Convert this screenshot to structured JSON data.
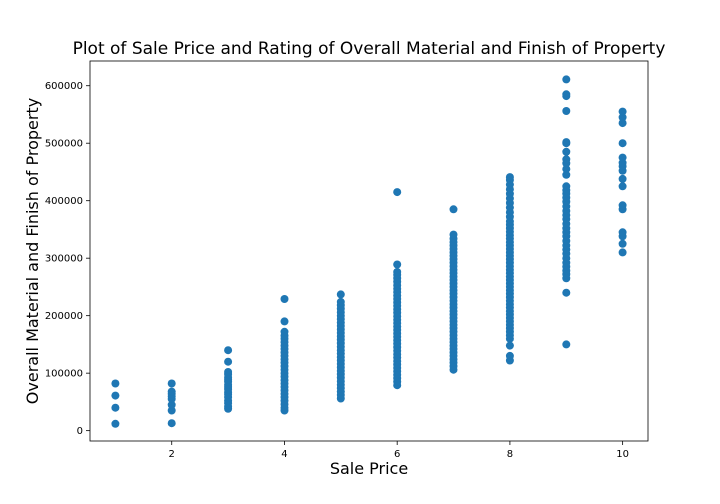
{
  "chart_data": {
    "type": "scatter",
    "title": "Plot of Sale Price and Rating of Overall Material and Finish of Property",
    "xlabel": "Sale Price",
    "ylabel": "Overall Material and Finish of Property",
    "xlim": [
      0.55,
      10.45
    ],
    "ylim": [
      -18000,
      643000
    ],
    "xticks": [
      2,
      4,
      6,
      8,
      10
    ],
    "yticks": [
      0,
      100000,
      200000,
      300000,
      400000,
      500000,
      600000
    ],
    "grid": false,
    "legend": "none",
    "marker_color": "#1f77b4",
    "points": [
      {
        "x": 1,
        "y": 12000
      },
      {
        "x": 1,
        "y": 40000
      },
      {
        "x": 1,
        "y": 61000
      },
      {
        "x": 1,
        "y": 82000
      },
      {
        "x": 2,
        "y": 13000
      },
      {
        "x": 2,
        "y": 35000
      },
      {
        "x": 2,
        "y": 45000
      },
      {
        "x": 2,
        "y": 55000
      },
      {
        "x": 2,
        "y": 60000
      },
      {
        "x": 2,
        "y": 64000
      },
      {
        "x": 2,
        "y": 68000
      },
      {
        "x": 2,
        "y": 82000
      },
      {
        "x": 3,
        "y": 38000
      },
      {
        "x": 3,
        "y": 42000
      },
      {
        "x": 3,
        "y": 48000
      },
      {
        "x": 3,
        "y": 52000
      },
      {
        "x": 3,
        "y": 58000
      },
      {
        "x": 3,
        "y": 63000
      },
      {
        "x": 3,
        "y": 67000
      },
      {
        "x": 3,
        "y": 72000
      },
      {
        "x": 3,
        "y": 76000
      },
      {
        "x": 3,
        "y": 80000
      },
      {
        "x": 3,
        "y": 85000
      },
      {
        "x": 3,
        "y": 89000
      },
      {
        "x": 3,
        "y": 93000
      },
      {
        "x": 3,
        "y": 98000
      },
      {
        "x": 3,
        "y": 102000
      },
      {
        "x": 3,
        "y": 120000
      },
      {
        "x": 3,
        "y": 140000
      },
      {
        "x": 4,
        "y": 35000
      },
      {
        "x": 4,
        "y": 40000
      },
      {
        "x": 4,
        "y": 46000
      },
      {
        "x": 4,
        "y": 52000
      },
      {
        "x": 4,
        "y": 58000
      },
      {
        "x": 4,
        "y": 64000
      },
      {
        "x": 4,
        "y": 70000
      },
      {
        "x": 4,
        "y": 76000
      },
      {
        "x": 4,
        "y": 82000
      },
      {
        "x": 4,
        "y": 88000
      },
      {
        "x": 4,
        "y": 94000
      },
      {
        "x": 4,
        "y": 100000
      },
      {
        "x": 4,
        "y": 106000
      },
      {
        "x": 4,
        "y": 112000
      },
      {
        "x": 4,
        "y": 118000
      },
      {
        "x": 4,
        "y": 124000
      },
      {
        "x": 4,
        "y": 130000
      },
      {
        "x": 4,
        "y": 136000
      },
      {
        "x": 4,
        "y": 142000
      },
      {
        "x": 4,
        "y": 148000
      },
      {
        "x": 4,
        "y": 154000
      },
      {
        "x": 4,
        "y": 160000
      },
      {
        "x": 4,
        "y": 165000
      },
      {
        "x": 4,
        "y": 172000
      },
      {
        "x": 4,
        "y": 190000
      },
      {
        "x": 4,
        "y": 229000
      },
      {
        "x": 5,
        "y": 56000
      },
      {
        "x": 5,
        "y": 62000
      },
      {
        "x": 5,
        "y": 68000
      },
      {
        "x": 5,
        "y": 74000
      },
      {
        "x": 5,
        "y": 80000
      },
      {
        "x": 5,
        "y": 86000
      },
      {
        "x": 5,
        "y": 92000
      },
      {
        "x": 5,
        "y": 98000
      },
      {
        "x": 5,
        "y": 104000
      },
      {
        "x": 5,
        "y": 110000
      },
      {
        "x": 5,
        "y": 116000
      },
      {
        "x": 5,
        "y": 122000
      },
      {
        "x": 5,
        "y": 128000
      },
      {
        "x": 5,
        "y": 134000
      },
      {
        "x": 5,
        "y": 140000
      },
      {
        "x": 5,
        "y": 146000
      },
      {
        "x": 5,
        "y": 152000
      },
      {
        "x": 5,
        "y": 158000
      },
      {
        "x": 5,
        "y": 164000
      },
      {
        "x": 5,
        "y": 170000
      },
      {
        "x": 5,
        "y": 176000
      },
      {
        "x": 5,
        "y": 182000
      },
      {
        "x": 5,
        "y": 188000
      },
      {
        "x": 5,
        "y": 194000
      },
      {
        "x": 5,
        "y": 200000
      },
      {
        "x": 5,
        "y": 206000
      },
      {
        "x": 5,
        "y": 212000
      },
      {
        "x": 5,
        "y": 218000
      },
      {
        "x": 5,
        "y": 224000
      },
      {
        "x": 5,
        "y": 237000
      },
      {
        "x": 6,
        "y": 79000
      },
      {
        "x": 6,
        "y": 85000
      },
      {
        "x": 6,
        "y": 91000
      },
      {
        "x": 6,
        "y": 97000
      },
      {
        "x": 6,
        "y": 103000
      },
      {
        "x": 6,
        "y": 109000
      },
      {
        "x": 6,
        "y": 115000
      },
      {
        "x": 6,
        "y": 121000
      },
      {
        "x": 6,
        "y": 127000
      },
      {
        "x": 6,
        "y": 133000
      },
      {
        "x": 6,
        "y": 139000
      },
      {
        "x": 6,
        "y": 145000
      },
      {
        "x": 6,
        "y": 151000
      },
      {
        "x": 6,
        "y": 157000
      },
      {
        "x": 6,
        "y": 163000
      },
      {
        "x": 6,
        "y": 169000
      },
      {
        "x": 6,
        "y": 175000
      },
      {
        "x": 6,
        "y": 181000
      },
      {
        "x": 6,
        "y": 187000
      },
      {
        "x": 6,
        "y": 193000
      },
      {
        "x": 6,
        "y": 199000
      },
      {
        "x": 6,
        "y": 205000
      },
      {
        "x": 6,
        "y": 211000
      },
      {
        "x": 6,
        "y": 217000
      },
      {
        "x": 6,
        "y": 223000
      },
      {
        "x": 6,
        "y": 229000
      },
      {
        "x": 6,
        "y": 235000
      },
      {
        "x": 6,
        "y": 241000
      },
      {
        "x": 6,
        "y": 247000
      },
      {
        "x": 6,
        "y": 253000
      },
      {
        "x": 6,
        "y": 259000
      },
      {
        "x": 6,
        "y": 265000
      },
      {
        "x": 6,
        "y": 271000
      },
      {
        "x": 6,
        "y": 276000
      },
      {
        "x": 6,
        "y": 289000
      },
      {
        "x": 6,
        "y": 415000
      },
      {
        "x": 7,
        "y": 106000
      },
      {
        "x": 7,
        "y": 112000
      },
      {
        "x": 7,
        "y": 118000
      },
      {
        "x": 7,
        "y": 124000
      },
      {
        "x": 7,
        "y": 130000
      },
      {
        "x": 7,
        "y": 136000
      },
      {
        "x": 7,
        "y": 142000
      },
      {
        "x": 7,
        "y": 148000
      },
      {
        "x": 7,
        "y": 154000
      },
      {
        "x": 7,
        "y": 160000
      },
      {
        "x": 7,
        "y": 166000
      },
      {
        "x": 7,
        "y": 172000
      },
      {
        "x": 7,
        "y": 178000
      },
      {
        "x": 7,
        "y": 184000
      },
      {
        "x": 7,
        "y": 190000
      },
      {
        "x": 7,
        "y": 196000
      },
      {
        "x": 7,
        "y": 202000
      },
      {
        "x": 7,
        "y": 208000
      },
      {
        "x": 7,
        "y": 214000
      },
      {
        "x": 7,
        "y": 220000
      },
      {
        "x": 7,
        "y": 226000
      },
      {
        "x": 7,
        "y": 232000
      },
      {
        "x": 7,
        "y": 238000
      },
      {
        "x": 7,
        "y": 244000
      },
      {
        "x": 7,
        "y": 250000
      },
      {
        "x": 7,
        "y": 256000
      },
      {
        "x": 7,
        "y": 262000
      },
      {
        "x": 7,
        "y": 268000
      },
      {
        "x": 7,
        "y": 274000
      },
      {
        "x": 7,
        "y": 280000
      },
      {
        "x": 7,
        "y": 286000
      },
      {
        "x": 7,
        "y": 292000
      },
      {
        "x": 7,
        "y": 298000
      },
      {
        "x": 7,
        "y": 304000
      },
      {
        "x": 7,
        "y": 310000
      },
      {
        "x": 7,
        "y": 316000
      },
      {
        "x": 7,
        "y": 322000
      },
      {
        "x": 7,
        "y": 328000
      },
      {
        "x": 7,
        "y": 334000
      },
      {
        "x": 7,
        "y": 341000
      },
      {
        "x": 7,
        "y": 385000
      },
      {
        "x": 8,
        "y": 122000
      },
      {
        "x": 8,
        "y": 130000
      },
      {
        "x": 8,
        "y": 148000
      },
      {
        "x": 8,
        "y": 160000
      },
      {
        "x": 8,
        "y": 166000
      },
      {
        "x": 8,
        "y": 172000
      },
      {
        "x": 8,
        "y": 178000
      },
      {
        "x": 8,
        "y": 184000
      },
      {
        "x": 8,
        "y": 190000
      },
      {
        "x": 8,
        "y": 196000
      },
      {
        "x": 8,
        "y": 202000
      },
      {
        "x": 8,
        "y": 208000
      },
      {
        "x": 8,
        "y": 214000
      },
      {
        "x": 8,
        "y": 220000
      },
      {
        "x": 8,
        "y": 226000
      },
      {
        "x": 8,
        "y": 232000
      },
      {
        "x": 8,
        "y": 238000
      },
      {
        "x": 8,
        "y": 244000
      },
      {
        "x": 8,
        "y": 250000
      },
      {
        "x": 8,
        "y": 256000
      },
      {
        "x": 8,
        "y": 262000
      },
      {
        "x": 8,
        "y": 268000
      },
      {
        "x": 8,
        "y": 274000
      },
      {
        "x": 8,
        "y": 280000
      },
      {
        "x": 8,
        "y": 286000
      },
      {
        "x": 8,
        "y": 292000
      },
      {
        "x": 8,
        "y": 298000
      },
      {
        "x": 8,
        "y": 304000
      },
      {
        "x": 8,
        "y": 310000
      },
      {
        "x": 8,
        "y": 316000
      },
      {
        "x": 8,
        "y": 322000
      },
      {
        "x": 8,
        "y": 328000
      },
      {
        "x": 8,
        "y": 334000
      },
      {
        "x": 8,
        "y": 340000
      },
      {
        "x": 8,
        "y": 346000
      },
      {
        "x": 8,
        "y": 352000
      },
      {
        "x": 8,
        "y": 358000
      },
      {
        "x": 8,
        "y": 364000
      },
      {
        "x": 8,
        "y": 372000
      },
      {
        "x": 8,
        "y": 380000
      },
      {
        "x": 8,
        "y": 388000
      },
      {
        "x": 8,
        "y": 396000
      },
      {
        "x": 8,
        "y": 404000
      },
      {
        "x": 8,
        "y": 412000
      },
      {
        "x": 8,
        "y": 420000
      },
      {
        "x": 8,
        "y": 428000
      },
      {
        "x": 8,
        "y": 436000
      },
      {
        "x": 8,
        "y": 441000
      },
      {
        "x": 9,
        "y": 150000
      },
      {
        "x": 9,
        "y": 240000
      },
      {
        "x": 9,
        "y": 265000
      },
      {
        "x": 9,
        "y": 272000
      },
      {
        "x": 9,
        "y": 278000
      },
      {
        "x": 9,
        "y": 285000
      },
      {
        "x": 9,
        "y": 292000
      },
      {
        "x": 9,
        "y": 300000
      },
      {
        "x": 9,
        "y": 308000
      },
      {
        "x": 9,
        "y": 315000
      },
      {
        "x": 9,
        "y": 322000
      },
      {
        "x": 9,
        "y": 330000
      },
      {
        "x": 9,
        "y": 338000
      },
      {
        "x": 9,
        "y": 345000
      },
      {
        "x": 9,
        "y": 352000
      },
      {
        "x": 9,
        "y": 360000
      },
      {
        "x": 9,
        "y": 368000
      },
      {
        "x": 9,
        "y": 375000
      },
      {
        "x": 9,
        "y": 382000
      },
      {
        "x": 9,
        "y": 390000
      },
      {
        "x": 9,
        "y": 398000
      },
      {
        "x": 9,
        "y": 405000
      },
      {
        "x": 9,
        "y": 412000
      },
      {
        "x": 9,
        "y": 418000
      },
      {
        "x": 9,
        "y": 425000
      },
      {
        "x": 9,
        "y": 445000
      },
      {
        "x": 9,
        "y": 455000
      },
      {
        "x": 9,
        "y": 465000
      },
      {
        "x": 9,
        "y": 472000
      },
      {
        "x": 9,
        "y": 485000
      },
      {
        "x": 9,
        "y": 500000
      },
      {
        "x": 9,
        "y": 502000
      },
      {
        "x": 9,
        "y": 556000
      },
      {
        "x": 9,
        "y": 582000
      },
      {
        "x": 9,
        "y": 585000
      },
      {
        "x": 9,
        "y": 611000
      },
      {
        "x": 10,
        "y": 310000
      },
      {
        "x": 10,
        "y": 325000
      },
      {
        "x": 10,
        "y": 338000
      },
      {
        "x": 10,
        "y": 345000
      },
      {
        "x": 10,
        "y": 385000
      },
      {
        "x": 10,
        "y": 392000
      },
      {
        "x": 10,
        "y": 425000
      },
      {
        "x": 10,
        "y": 438000
      },
      {
        "x": 10,
        "y": 452000
      },
      {
        "x": 10,
        "y": 460000
      },
      {
        "x": 10,
        "y": 466000
      },
      {
        "x": 10,
        "y": 475000
      },
      {
        "x": 10,
        "y": 500000
      },
      {
        "x": 10,
        "y": 535000
      },
      {
        "x": 10,
        "y": 545000
      },
      {
        "x": 10,
        "y": 555000
      }
    ]
  }
}
